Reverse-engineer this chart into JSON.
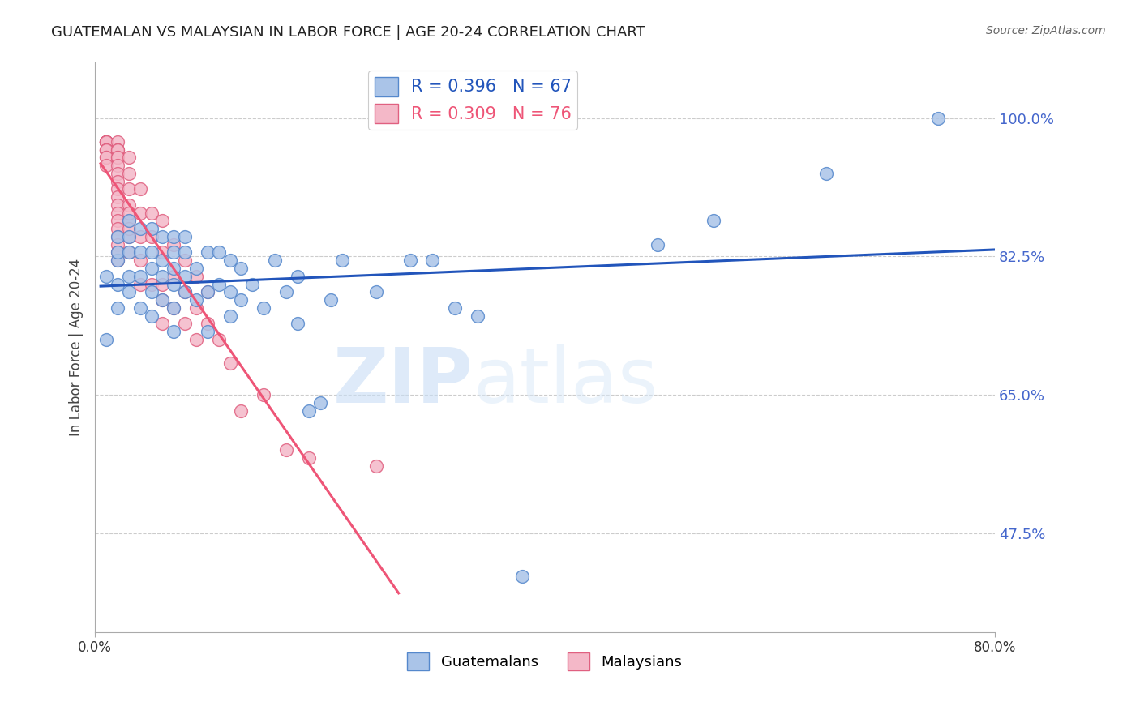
{
  "title": "GUATEMALAN VS MALAYSIAN IN LABOR FORCE | AGE 20-24 CORRELATION CHART",
  "source": "Source: ZipAtlas.com",
  "ylabel": "In Labor Force | Age 20-24",
  "yticks": [
    0.475,
    0.65,
    0.825,
    1.0
  ],
  "ytick_labels": [
    "47.5%",
    "65.0%",
    "82.5%",
    "100.0%"
  ],
  "xlim": [
    0.0,
    0.8
  ],
  "ylim": [
    0.35,
    1.07
  ],
  "blue_R": 0.396,
  "blue_N": 67,
  "pink_R": 0.309,
  "pink_N": 76,
  "blue_color": "#aac4e8",
  "pink_color": "#f4b8c8",
  "blue_edge_color": "#5588cc",
  "pink_edge_color": "#e06080",
  "blue_trend_color": "#2255bb",
  "pink_trend_color": "#ee5577",
  "guatemalans_label": "Guatemalans",
  "malaysians_label": "Malaysians",
  "watermark_zip": "ZIP",
  "watermark_atlas": "atlas",
  "background_color": "#ffffff",
  "grid_color": "#cccccc",
  "axis_color": "#aaaaaa",
  "right_label_color": "#4466cc",
  "blue_x": [
    0.01,
    0.01,
    0.02,
    0.02,
    0.02,
    0.02,
    0.02,
    0.03,
    0.03,
    0.03,
    0.03,
    0.03,
    0.04,
    0.04,
    0.04,
    0.04,
    0.05,
    0.05,
    0.05,
    0.05,
    0.05,
    0.06,
    0.06,
    0.06,
    0.06,
    0.07,
    0.07,
    0.07,
    0.07,
    0.07,
    0.07,
    0.08,
    0.08,
    0.08,
    0.08,
    0.09,
    0.09,
    0.1,
    0.1,
    0.1,
    0.11,
    0.11,
    0.12,
    0.12,
    0.12,
    0.13,
    0.13,
    0.14,
    0.15,
    0.16,
    0.17,
    0.18,
    0.18,
    0.19,
    0.2,
    0.21,
    0.22,
    0.25,
    0.28,
    0.3,
    0.32,
    0.34,
    0.38,
    0.5,
    0.55,
    0.65,
    0.75
  ],
  "blue_y": [
    0.72,
    0.8,
    0.76,
    0.79,
    0.82,
    0.83,
    0.85,
    0.78,
    0.8,
    0.83,
    0.85,
    0.87,
    0.76,
    0.8,
    0.83,
    0.86,
    0.75,
    0.78,
    0.81,
    0.83,
    0.86,
    0.77,
    0.8,
    0.82,
    0.85,
    0.73,
    0.76,
    0.79,
    0.81,
    0.83,
    0.85,
    0.78,
    0.8,
    0.83,
    0.85,
    0.77,
    0.81,
    0.73,
    0.78,
    0.83,
    0.79,
    0.83,
    0.75,
    0.78,
    0.82,
    0.77,
    0.81,
    0.79,
    0.76,
    0.82,
    0.78,
    0.8,
    0.74,
    0.63,
    0.64,
    0.77,
    0.82,
    0.78,
    0.82,
    0.82,
    0.76,
    0.75,
    0.42,
    0.84,
    0.87,
    0.93,
    1.0
  ],
  "pink_x": [
    0.01,
    0.01,
    0.01,
    0.01,
    0.01,
    0.01,
    0.01,
    0.01,
    0.01,
    0.01,
    0.01,
    0.01,
    0.01,
    0.01,
    0.01,
    0.01,
    0.01,
    0.02,
    0.02,
    0.02,
    0.02,
    0.02,
    0.02,
    0.02,
    0.02,
    0.02,
    0.02,
    0.02,
    0.02,
    0.02,
    0.02,
    0.02,
    0.02,
    0.02,
    0.02,
    0.02,
    0.03,
    0.03,
    0.03,
    0.03,
    0.03,
    0.03,
    0.03,
    0.03,
    0.03,
    0.04,
    0.04,
    0.04,
    0.04,
    0.04,
    0.05,
    0.05,
    0.05,
    0.06,
    0.06,
    0.06,
    0.06,
    0.06,
    0.07,
    0.07,
    0.07,
    0.08,
    0.08,
    0.08,
    0.09,
    0.09,
    0.09,
    0.1,
    0.1,
    0.11,
    0.12,
    0.13,
    0.15,
    0.17,
    0.19,
    0.25
  ],
  "pink_y": [
    0.96,
    0.97,
    0.97,
    0.97,
    0.97,
    0.97,
    0.97,
    0.97,
    0.97,
    0.96,
    0.96,
    0.96,
    0.96,
    0.95,
    0.95,
    0.95,
    0.94,
    0.97,
    0.96,
    0.96,
    0.96,
    0.95,
    0.95,
    0.94,
    0.93,
    0.92,
    0.91,
    0.9,
    0.89,
    0.88,
    0.87,
    0.86,
    0.85,
    0.84,
    0.83,
    0.82,
    0.95,
    0.93,
    0.91,
    0.89,
    0.87,
    0.85,
    0.83,
    0.88,
    0.86,
    0.91,
    0.88,
    0.85,
    0.82,
    0.79,
    0.88,
    0.85,
    0.79,
    0.87,
    0.83,
    0.79,
    0.77,
    0.74,
    0.84,
    0.8,
    0.76,
    0.82,
    0.78,
    0.74,
    0.8,
    0.76,
    0.72,
    0.78,
    0.74,
    0.72,
    0.69,
    0.63,
    0.65,
    0.58,
    0.57,
    0.56
  ],
  "pink_trend_xrange": [
    0.005,
    0.27
  ],
  "blue_trend_xrange": [
    0.005,
    0.8
  ]
}
